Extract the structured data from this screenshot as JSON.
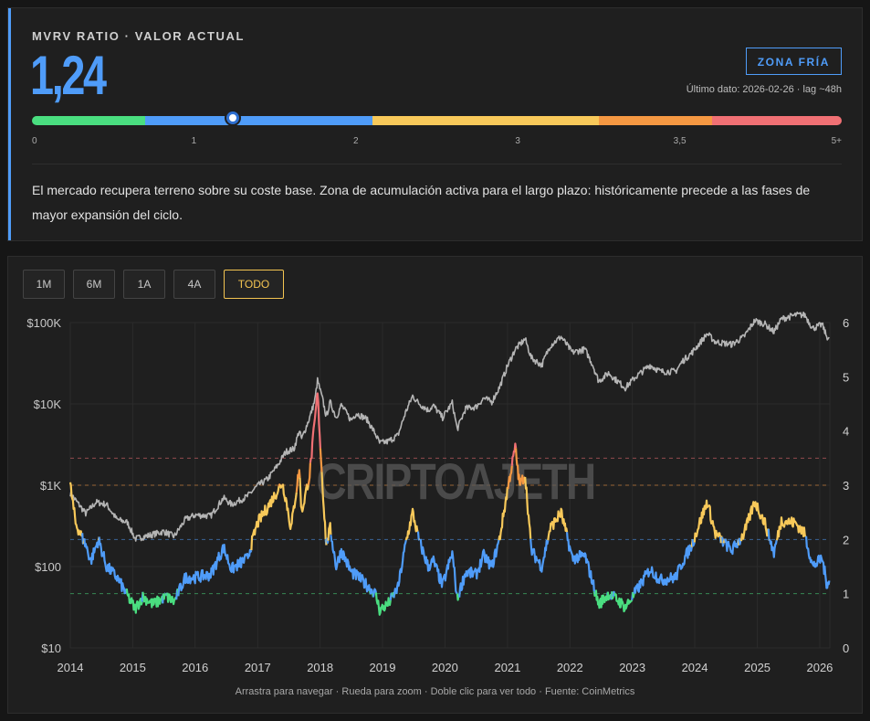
{
  "header": {
    "label": "MVRV RATIO · VALOR ACTUAL",
    "value": "1,24",
    "zone": "ZONA FRÍA",
    "last_data": "Último dato: 2026-02-26 · lag ~48h",
    "description": "El mercado recupera terreno sobre su coste base. Zona de acumulación activa para el largo plazo: históricamente precede a las fases de mayor expansión del ciclo."
  },
  "gauge": {
    "current_value": 1.24,
    "ticks": [
      "0",
      "1",
      "2",
      "3",
      "3,5",
      "5+"
    ],
    "segments": [
      {
        "color": "#4ade80",
        "from": 0,
        "to": 0.7
      },
      {
        "color": "#4f9cf9",
        "from": 0.7,
        "to": 2.1
      },
      {
        "color": "#f8c95a",
        "from": 2.1,
        "to": 3.5
      },
      {
        "color": "#f59842",
        "from": 3.5,
        "to": 4.2
      },
      {
        "color": "#f07074",
        "from": 4.2,
        "to": 5
      }
    ]
  },
  "range_buttons": [
    {
      "label": "1M",
      "active": false
    },
    {
      "label": "6M",
      "active": false
    },
    {
      "label": "1A",
      "active": false
    },
    {
      "label": "4A",
      "active": false
    },
    {
      "label": "TODO",
      "active": true
    }
  ],
  "watermark": "CRIPTOAJETH",
  "footer": "Arrastra para navegar · Rueda para zoom · Doble clic para ver todo · Fuente: CoinMetrics",
  "colors": {
    "cold": "#4ade80",
    "neutral": "#4f9cf9",
    "warm": "#f8c95a",
    "hot": "#f59842",
    "extreme": "#f07074",
    "price": "#b5b5b5"
  },
  "chart_data": {
    "type": "line",
    "x_range": [
      "2014-01-01",
      "2026-03-01"
    ],
    "x_ticks": [
      "2014",
      "2015",
      "2016",
      "2017",
      "2018",
      "2019",
      "2020",
      "2021",
      "2022",
      "2023",
      "2024",
      "2025",
      "2026"
    ],
    "y_left": {
      "scale": "log",
      "range": [
        10,
        100000
      ],
      "ticks": [
        "$10",
        "$100",
        "$1K",
        "$10K",
        "$100K"
      ]
    },
    "y_right": {
      "range": [
        0,
        6
      ],
      "ticks": [
        "0",
        "1",
        "2",
        "3",
        "4",
        "5",
        "6"
      ]
    },
    "thresholds": [
      {
        "value": 1,
        "color": "#4ade80"
      },
      {
        "value": 2,
        "color": "#4f9cf9"
      },
      {
        "value": 3,
        "color": "#f59842"
      },
      {
        "value": 3.5,
        "color": "#f07074"
      }
    ],
    "series": [
      {
        "axis": "left",
        "points": [
          [
            "2014-01-01",
            800
          ],
          [
            "2014-02-15",
            600
          ],
          [
            "2014-04-01",
            450
          ],
          [
            "2014-06-01",
            620
          ],
          [
            "2014-08-01",
            580
          ],
          [
            "2014-10-01",
            380
          ],
          [
            "2014-12-01",
            350
          ],
          [
            "2015-01-15",
            220
          ],
          [
            "2015-04-01",
            240
          ],
          [
            "2015-07-01",
            270
          ],
          [
            "2015-09-01",
            235
          ],
          [
            "2015-11-05",
            380
          ],
          [
            "2016-01-01",
            430
          ],
          [
            "2016-04-01",
            420
          ],
          [
            "2016-06-15",
            700
          ],
          [
            "2016-08-01",
            580
          ],
          [
            "2016-11-01",
            730
          ],
          [
            "2017-01-01",
            990
          ],
          [
            "2017-03-01",
            1200
          ],
          [
            "2017-05-01",
            1800
          ],
          [
            "2017-06-15",
            2600
          ],
          [
            "2017-08-01",
            2800
          ],
          [
            "2017-09-01",
            4700
          ],
          [
            "2017-09-15",
            3700
          ],
          [
            "2017-11-01",
            6800
          ],
          [
            "2017-12-01",
            11000
          ],
          [
            "2017-12-17",
            19500
          ],
          [
            "2018-01-15",
            11500
          ],
          [
            "2018-02-06",
            7000
          ],
          [
            "2018-03-01",
            10500
          ],
          [
            "2018-04-05",
            6800
          ],
          [
            "2018-05-05",
            9700
          ],
          [
            "2018-07-01",
            6300
          ],
          [
            "2018-08-01",
            7700
          ],
          [
            "2018-10-01",
            6500
          ],
          [
            "2018-11-20",
            4300
          ],
          [
            "2018-12-15",
            3300
          ],
          [
            "2019-02-01",
            3450
          ],
          [
            "2019-04-01",
            4100
          ],
          [
            "2019-05-15",
            7800
          ],
          [
            "2019-06-26",
            12500
          ],
          [
            "2019-08-01",
            10200
          ],
          [
            "2019-09-25",
            8400
          ],
          [
            "2019-10-26",
            9500
          ],
          [
            "2019-12-18",
            6800
          ],
          [
            "2020-02-13",
            10300
          ],
          [
            "2020-03-13",
            4900
          ],
          [
            "2020-05-01",
            8800
          ],
          [
            "2020-07-01",
            9200
          ],
          [
            "2020-08-15",
            11800
          ],
          [
            "2020-10-01",
            10600
          ],
          [
            "2020-11-15",
            16000
          ],
          [
            "2020-12-31",
            29000
          ],
          [
            "2021-02-15",
            47000
          ],
          [
            "2021-04-14",
            63000
          ],
          [
            "2021-05-20",
            37000
          ],
          [
            "2021-07-20",
            30000
          ],
          [
            "2021-09-07",
            52000
          ],
          [
            "2021-11-10",
            67000
          ],
          [
            "2022-01-15",
            43000
          ],
          [
            "2022-03-30",
            47000
          ],
          [
            "2022-05-15",
            30000
          ],
          [
            "2022-06-18",
            19000
          ],
          [
            "2022-08-15",
            24000
          ],
          [
            "2022-10-01",
            19500
          ],
          [
            "2022-11-21",
            15800
          ],
          [
            "2023-01-15",
            21000
          ],
          [
            "2023-04-14",
            30000
          ],
          [
            "2023-06-15",
            25000
          ],
          [
            "2023-09-11",
            25200
          ],
          [
            "2023-10-24",
            34000
          ],
          [
            "2023-12-15",
            42500
          ],
          [
            "2024-03-14",
            73000
          ],
          [
            "2024-05-01",
            58000
          ],
          [
            "2024-08-05",
            54000
          ],
          [
            "2024-10-15",
            67000
          ],
          [
            "2024-12-17",
            106000
          ],
          [
            "2025-02-15",
            96000
          ],
          [
            "2025-04-08",
            77000
          ],
          [
            "2025-05-22",
            111000
          ],
          [
            "2025-08-14",
            124000
          ],
          [
            "2025-10-06",
            124000
          ],
          [
            "2025-11-21",
            85000
          ],
          [
            "2026-01-15",
            95000
          ],
          [
            "2026-02-10",
            68000
          ],
          [
            "2026-02-26",
            64000
          ]
        ]
      },
      {
        "axis": "right",
        "points": [
          [
            "2014-01-01",
            3.0
          ],
          [
            "2014-02-01",
            2.3
          ],
          [
            "2014-04-01",
            1.9
          ],
          [
            "2014-05-01",
            1.6
          ],
          [
            "2014-06-15",
            2.0
          ],
          [
            "2014-08-01",
            1.5
          ],
          [
            "2014-10-01",
            1.3
          ],
          [
            "2014-11-15",
            1.05
          ],
          [
            "2015-01-15",
            0.72
          ],
          [
            "2015-03-01",
            0.95
          ],
          [
            "2015-05-01",
            0.8
          ],
          [
            "2015-07-15",
            0.95
          ],
          [
            "2015-09-01",
            0.85
          ],
          [
            "2015-11-05",
            1.3
          ],
          [
            "2016-01-01",
            1.3
          ],
          [
            "2016-04-01",
            1.35
          ],
          [
            "2016-06-15",
            1.85
          ],
          [
            "2016-08-01",
            1.45
          ],
          [
            "2016-11-01",
            1.65
          ],
          [
            "2016-12-31",
            2.3
          ],
          [
            "2017-03-01",
            2.6
          ],
          [
            "2017-05-25",
            3.05
          ],
          [
            "2017-06-15",
            2.75
          ],
          [
            "2017-07-15",
            2.2
          ],
          [
            "2017-09-01",
            3.3
          ],
          [
            "2017-09-15",
            2.5
          ],
          [
            "2017-11-01",
            3.2
          ],
          [
            "2017-12-17",
            4.7
          ],
          [
            "2018-01-15",
            3.0
          ],
          [
            "2018-02-06",
            1.9
          ],
          [
            "2018-03-01",
            2.2
          ],
          [
            "2018-04-05",
            1.5
          ],
          [
            "2018-05-05",
            1.8
          ],
          [
            "2018-07-01",
            1.4
          ],
          [
            "2018-08-15",
            1.3
          ],
          [
            "2018-11-20",
            1.0
          ],
          [
            "2018-12-15",
            0.7
          ],
          [
            "2019-02-01",
            0.8
          ],
          [
            "2019-04-01",
            1.1
          ],
          [
            "2019-05-15",
            1.9
          ],
          [
            "2019-06-26",
            2.5
          ],
          [
            "2019-08-01",
            2.0
          ],
          [
            "2019-09-25",
            1.5
          ],
          [
            "2019-10-26",
            1.6
          ],
          [
            "2019-12-18",
            1.15
          ],
          [
            "2020-02-13",
            1.75
          ],
          [
            "2020-03-13",
            0.9
          ],
          [
            "2020-05-01",
            1.4
          ],
          [
            "2020-07-01",
            1.35
          ],
          [
            "2020-08-15",
            1.7
          ],
          [
            "2020-10-01",
            1.5
          ],
          [
            "2020-11-15",
            2.0
          ],
          [
            "2020-12-31",
            2.9
          ],
          [
            "2021-02-15",
            3.7
          ],
          [
            "2021-03-13",
            3.0
          ],
          [
            "2021-04-14",
            3.2
          ],
          [
            "2021-05-20",
            1.8
          ],
          [
            "2021-07-20",
            1.5
          ],
          [
            "2021-09-07",
            2.2
          ],
          [
            "2021-11-10",
            2.5
          ],
          [
            "2022-01-15",
            1.65
          ],
          [
            "2022-03-30",
            1.7
          ],
          [
            "2022-05-15",
            1.2
          ],
          [
            "2022-06-18",
            0.8
          ],
          [
            "2022-08-15",
            1.0
          ],
          [
            "2022-10-01",
            0.9
          ],
          [
            "2022-11-21",
            0.75
          ],
          [
            "2023-01-15",
            1.0
          ],
          [
            "2023-04-14",
            1.45
          ],
          [
            "2023-06-15",
            1.25
          ],
          [
            "2023-09-11",
            1.3
          ],
          [
            "2023-10-24",
            1.6
          ],
          [
            "2023-12-15",
            1.9
          ],
          [
            "2024-03-14",
            2.7
          ],
          [
            "2024-05-01",
            2.1
          ],
          [
            "2024-08-05",
            1.8
          ],
          [
            "2024-10-15",
            2.1
          ],
          [
            "2024-12-17",
            2.7
          ],
          [
            "2025-02-15",
            2.3
          ],
          [
            "2025-04-08",
            1.75
          ],
          [
            "2025-05-22",
            2.35
          ],
          [
            "2025-08-14",
            2.3
          ],
          [
            "2025-10-06",
            2.1
          ],
          [
            "2025-11-21",
            1.5
          ],
          [
            "2026-01-15",
            1.65
          ],
          [
            "2026-02-10",
            1.2
          ],
          [
            "2026-02-26",
            1.24
          ]
        ]
      }
    ]
  }
}
